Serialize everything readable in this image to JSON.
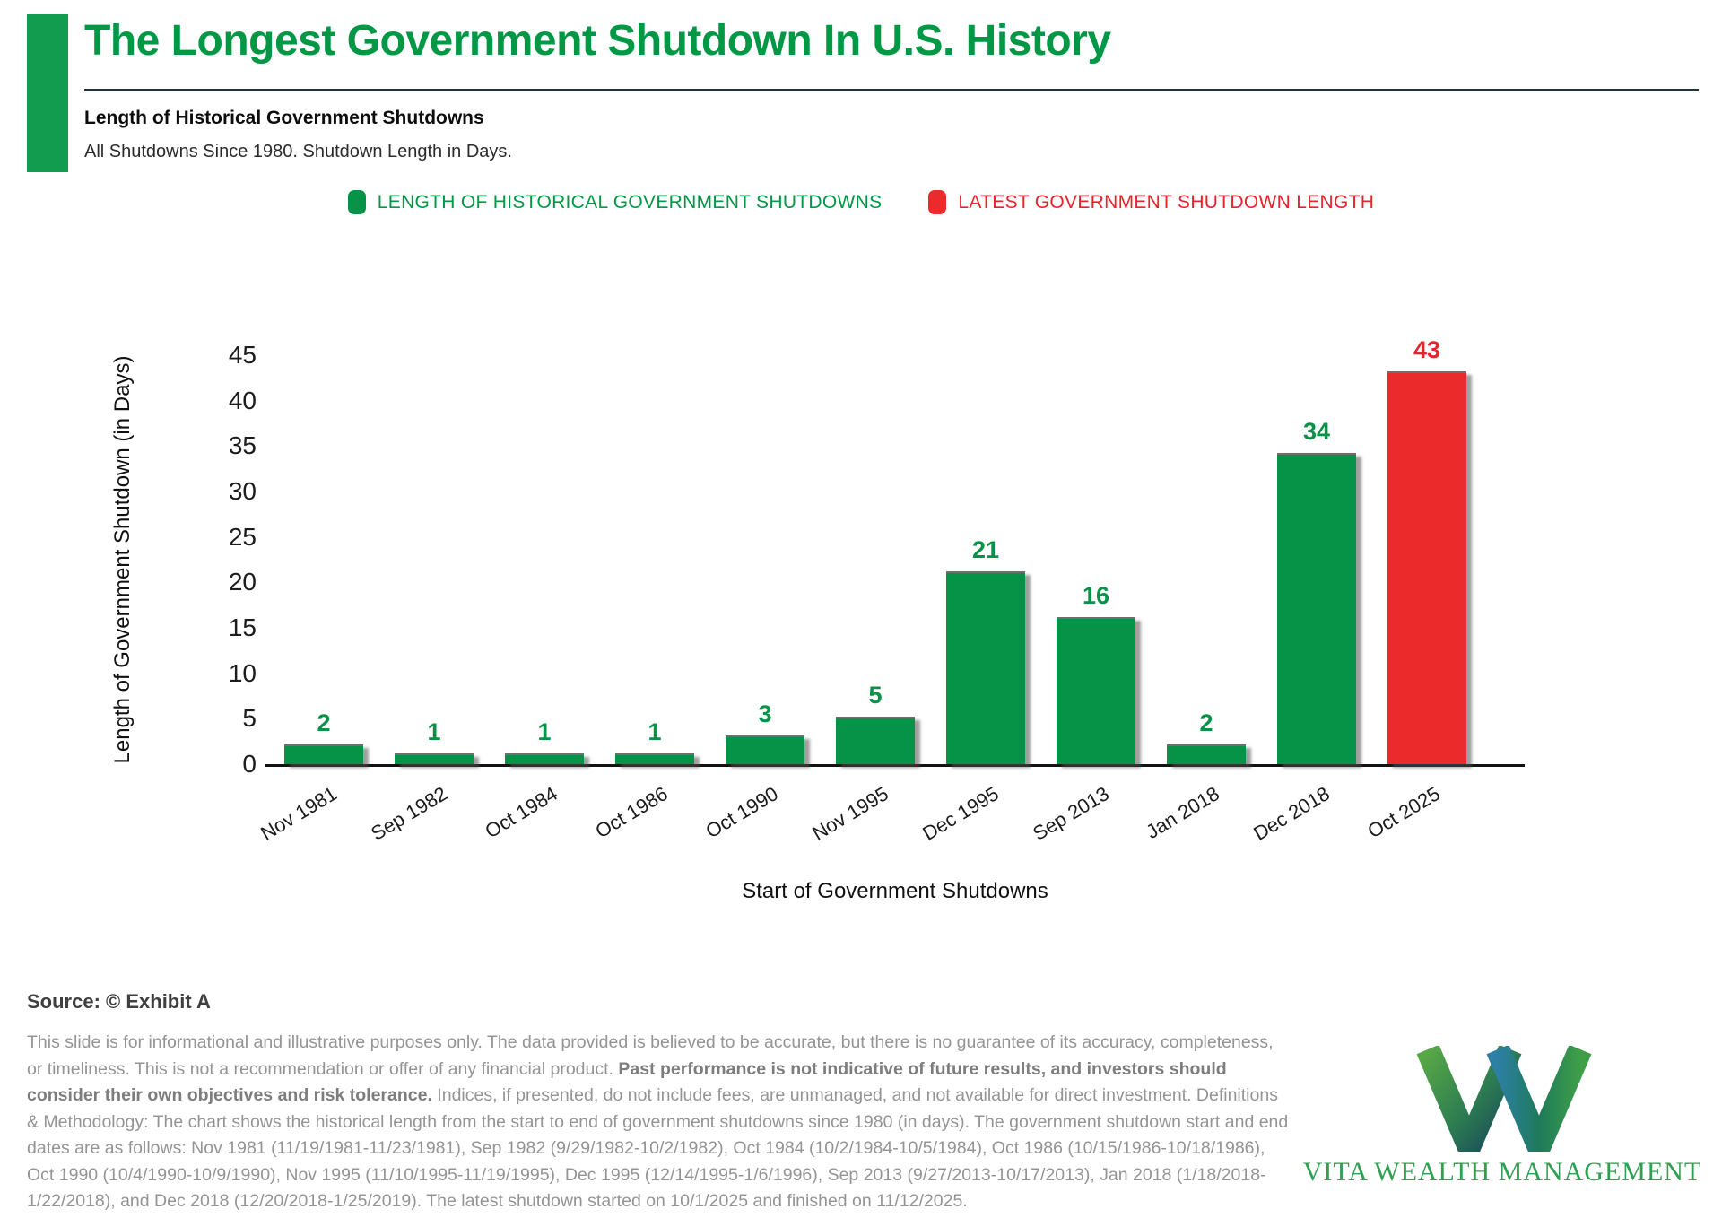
{
  "colors": {
    "green": "#069347",
    "red": "#EA2A2B",
    "title_green": "#009845",
    "accent_green": "#119C50",
    "legend_green_text": "#009845",
    "legend_red_text": "#E8232B",
    "rule_dark": "#26303D",
    "gray_text": "#949494",
    "logo_green": "#2F9F52"
  },
  "header": {
    "title": "The Longest Government Shutdown In U.S. History",
    "subtitle": "Length of Historical Government Shutdowns",
    "tagline": "All Shutdowns Since 1980. Shutdown Length in Days."
  },
  "legend": {
    "items": [
      {
        "label": "LENGTH OF HISTORICAL GOVERNMENT SHUTDOWNS",
        "color": "#069347",
        "text_color": "#009845"
      },
      {
        "label": "LATEST GOVERNMENT SHUTDOWN LENGTH",
        "color": "#EA2A2B",
        "text_color": "#E8232B"
      }
    ]
  },
  "chart_data": {
    "type": "bar",
    "categories": [
      "Nov 1981",
      "Sep 1982",
      "Oct 1984",
      "Oct 1986",
      "Oct 1990",
      "Nov 1995",
      "Dec 1995",
      "Sep 2013",
      "Jan 2018",
      "Dec 2018",
      "Oct 2025"
    ],
    "values": [
      2,
      1,
      1,
      1,
      3,
      5,
      21,
      16,
      2,
      34,
      43
    ],
    "bar_colors": [
      "green",
      "green",
      "green",
      "green",
      "green",
      "green",
      "green",
      "green",
      "green",
      "green",
      "red"
    ],
    "title": "Length of Historical Government Shutdowns",
    "xlabel": "Start of Government Shutdowns",
    "ylabel": "Length of Government Shutdown (in Days)",
    "ylim": [
      0,
      45
    ],
    "ytick_step": 5,
    "grid": false,
    "legend_position": "top",
    "value_labels_shown": true
  },
  "footer": {
    "source": "Source: © Exhibit A",
    "disclaimer_pre": "This slide is for informational and illustrative purposes only. The data provided is believed to be accurate, but there is no guarantee of its accuracy, completeness, or timeliness. This is not a recommendation or offer of any financial product. ",
    "disclaimer_bold": "Past performance is not indicative of future results, and investors should consider their own objectives and risk tolerance.",
    "disclaimer_post": " Indices, if presented, do not include fees, are unmanaged, and not available for direct investment. Definitions & Methodology: The chart shows the historical length from the start to end of government shutdowns since 1980 (in days). The government shutdown start and end dates are as follows: Nov 1981 (11/19/1981-11/23/1981), Sep 1982 (9/29/1982-10/2/1982), Oct 1984 (10/2/1984-10/5/1984), Oct 1986 (10/15/1986-10/18/1986), Oct 1990 (10/4/1990-10/9/1990), Nov 1995 (11/10/1995-11/19/1995), Dec 1995 (12/14/1995-1/6/1996), Sep 2013 (9/27/2013-10/17/2013), Jan 2018 (1/18/2018-1/22/2018), and Dec 2018 (12/20/2018-1/25/2019). The latest shutdown started on 10/1/2025 and finished on 11/12/2025."
  },
  "logo": {
    "text": "VITA WEALTH MANAGEMENT"
  }
}
